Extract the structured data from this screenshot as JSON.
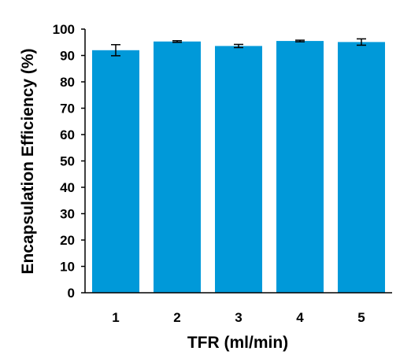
{
  "chart_data": {
    "type": "bar",
    "title": "",
    "xlabel": "TFR (ml/min)",
    "ylabel": "Encapsulation Efficiency (%)",
    "categories": [
      "1",
      "2",
      "3",
      "4",
      "5"
    ],
    "values": [
      92.0,
      95.3,
      93.6,
      95.5,
      95.1
    ],
    "error": [
      2.1,
      0.3,
      0.6,
      0.3,
      1.2
    ],
    "ylim": [
      0,
      100
    ],
    "yticks": [
      "0",
      "10",
      "20",
      "30",
      "40",
      "50",
      "60",
      "70",
      "80",
      "90",
      "100"
    ],
    "grid": false,
    "legend": "none",
    "bar_color": "#0099d9",
    "error_color": "#000000"
  }
}
